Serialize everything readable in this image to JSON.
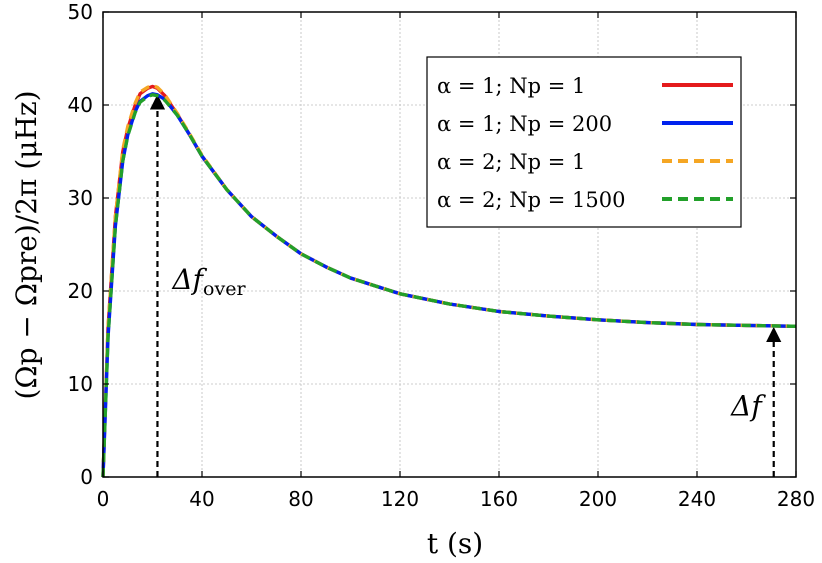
{
  "chart_data": {
    "type": "line",
    "xlabel": "t (s)",
    "ylabel": "(Ωp − Ωpre)/2π (μHz)",
    "xlim": [
      0,
      280
    ],
    "ylim": [
      0,
      50
    ],
    "xticks": [
      "0",
      "40",
      "80",
      "120",
      "160",
      "200",
      "240",
      "280"
    ],
    "yticks": [
      "0",
      "10",
      "20",
      "30",
      "40",
      "50"
    ],
    "grid": true,
    "legend_position": "top-right",
    "series": [
      {
        "name": "α = 1; Np = 1",
        "color": "#e41a1c",
        "dash": "solid",
        "x": [
          0,
          2,
          5,
          8,
          10,
          13,
          15,
          18,
          20,
          22,
          25,
          30,
          35,
          40,
          50,
          60,
          70,
          80,
          90,
          100,
          120,
          140,
          160,
          180,
          200,
          220,
          240,
          260,
          280
        ],
        "y": [
          0,
          16,
          28,
          35,
          37.5,
          40,
          41.2,
          41.8,
          42.0,
          41.8,
          41.0,
          39.0,
          36.8,
          34.5,
          30.9,
          28.0,
          25.9,
          24.0,
          22.6,
          21.4,
          19.7,
          18.6,
          17.8,
          17.3,
          16.9,
          16.6,
          16.4,
          16.3,
          16.2
        ]
      },
      {
        "name": "α = 1; Np = 200",
        "color": "#0022ee",
        "dash": "solid",
        "x": [
          0,
          2,
          5,
          8,
          10,
          13,
          15,
          18,
          20,
          22,
          25,
          30,
          35,
          40,
          50,
          60,
          70,
          80,
          90,
          100,
          120,
          140,
          160,
          180,
          200,
          220,
          240,
          260,
          280
        ],
        "y": [
          0,
          15,
          27,
          34,
          36.8,
          39.3,
          40.4,
          41.0,
          41.2,
          41.1,
          40.6,
          38.9,
          36.8,
          34.5,
          30.9,
          28.0,
          25.9,
          24.0,
          22.6,
          21.4,
          19.7,
          18.6,
          17.8,
          17.3,
          16.9,
          16.6,
          16.4,
          16.3,
          16.2
        ]
      },
      {
        "name": "α = 2; Np = 1",
        "color": "#f5a623",
        "dash": "dashed",
        "x": [
          0,
          2,
          5,
          8,
          10,
          13,
          15,
          18,
          20,
          22,
          25,
          30,
          35,
          40,
          50,
          60,
          70,
          80,
          90,
          100,
          120,
          140,
          160,
          180,
          200,
          220,
          240,
          260,
          280
        ],
        "y": [
          0,
          16,
          28,
          35.2,
          37.7,
          40.2,
          41.4,
          41.9,
          42.1,
          41.9,
          41.1,
          39.1,
          36.9,
          34.6,
          30.9,
          28.0,
          25.9,
          24.0,
          22.6,
          21.4,
          19.7,
          18.6,
          17.8,
          17.3,
          16.9,
          16.6,
          16.4,
          16.3,
          16.2
        ]
      },
      {
        "name": "α = 2; Np = 1500",
        "color": "#22a02a",
        "dash": "dashed",
        "x": [
          0,
          2,
          5,
          8,
          10,
          13,
          15,
          18,
          20,
          22,
          25,
          30,
          35,
          40,
          50,
          60,
          70,
          80,
          90,
          100,
          120,
          140,
          160,
          180,
          200,
          220,
          240,
          260,
          280
        ],
        "y": [
          0,
          15,
          27,
          34,
          36.7,
          39.2,
          40.3,
          40.9,
          41.1,
          41.0,
          40.5,
          38.9,
          36.8,
          34.5,
          30.9,
          28.0,
          25.9,
          24.0,
          22.6,
          21.4,
          19.7,
          18.6,
          17.8,
          17.3,
          16.9,
          16.6,
          16.4,
          16.3,
          16.2
        ]
      }
    ],
    "annotations": [
      {
        "label": "Δf_over",
        "main": "Δf",
        "sub": "over",
        "x": 22,
        "y_from": 0,
        "y_to": 41.2
      },
      {
        "label": "Δf",
        "main": "Δf",
        "sub": "",
        "x": 271,
        "y_from": 0,
        "y_to": 16.2
      }
    ]
  }
}
